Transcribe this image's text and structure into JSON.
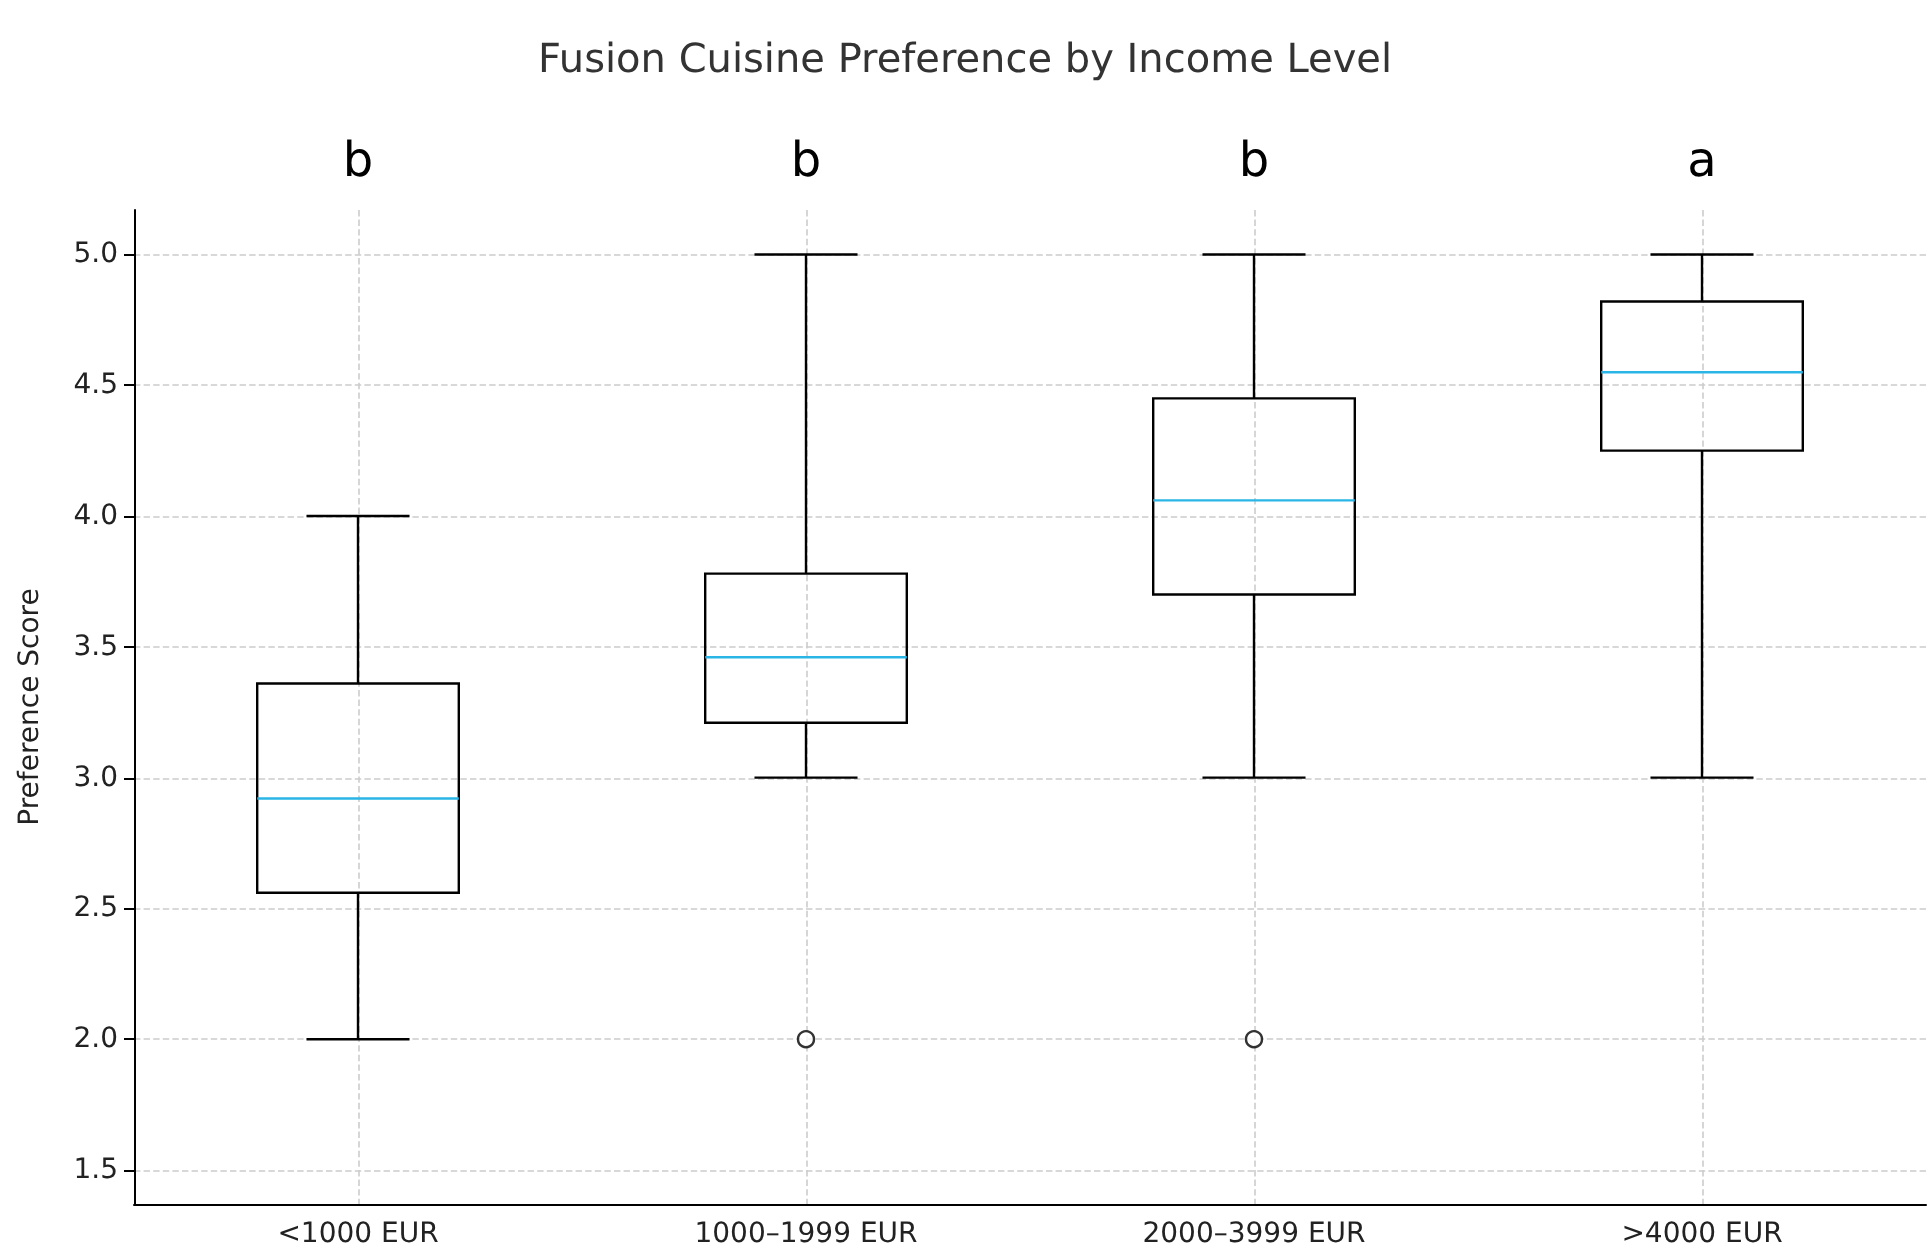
{
  "chart_data": {
    "type": "box",
    "title": "Fusion Cuisine Preference by Income Level",
    "ylabel": "Preference Score",
    "categories": [
      "<1000 EUR",
      "1000–1999 EUR",
      "2000–3999 EUR",
      ">4000 EUR"
    ],
    "boxes": [
      {
        "low": 2.0,
        "q1": 2.56,
        "median": 2.92,
        "q3": 3.36,
        "high": 4.0
      },
      {
        "low": 3.0,
        "q1": 3.21,
        "median": 3.46,
        "q3": 3.78,
        "high": 5.0,
        "outliers": [
          2.0
        ]
      },
      {
        "low": 3.0,
        "q1": 3.7,
        "median": 4.06,
        "q3": 4.45,
        "high": 5.0,
        "outliers": [
          2.0
        ]
      },
      {
        "low": 3.0,
        "q1": 4.25,
        "median": 4.55,
        "q3": 4.82,
        "high": 5.0
      }
    ],
    "color": "#000000",
    "ylim": [
      1.37,
      5.17
    ],
    "yticks": [
      1.5,
      {
        "value": 2,
        "label": "2.0"
      },
      2.5,
      {
        "value": 3,
        "label": "3.0"
      },
      3.5,
      {
        "value": 4,
        "label": "4.0"
      },
      4.5,
      {
        "value": 5,
        "label": "5.0"
      }
    ],
    "grid": true,
    "annotations": [
      "b",
      "b",
      "b",
      "a"
    ]
  }
}
